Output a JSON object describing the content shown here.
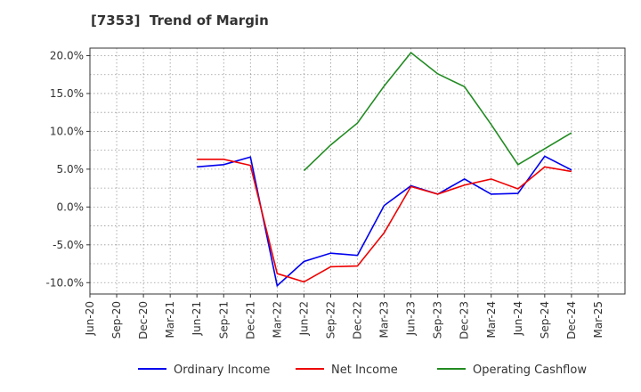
{
  "chart_data": {
    "type": "line",
    "title": "[7353]  Trend of Margin",
    "xlabel": "",
    "ylabel": "",
    "categories": [
      "Jun-20",
      "Sep-20",
      "Dec-20",
      "Mar-21",
      "Jun-21",
      "Sep-21",
      "Dec-21",
      "Mar-22",
      "Jun-22",
      "Sep-22",
      "Dec-22",
      "Mar-23",
      "Jun-23",
      "Sep-23",
      "Dec-23",
      "Mar-24",
      "Jun-24",
      "Sep-24",
      "Dec-24",
      "Mar-25"
    ],
    "ylim": [
      -11.5,
      21.0
    ],
    "yticks": [
      -10.0,
      -5.0,
      0.0,
      5.0,
      10.0,
      15.0,
      20.0
    ],
    "ytick_labels": [
      "-10.0%",
      "-5.0%",
      "0.0%",
      "5.0%",
      "10.0%",
      "15.0%",
      "20.0%"
    ],
    "grid": true,
    "legend_position": "bottom",
    "series": [
      {
        "name": "Ordinary Income",
        "color": "#0000ee",
        "values": [
          null,
          null,
          null,
          null,
          5.3,
          5.6,
          6.6,
          -10.4,
          -7.2,
          -6.1,
          -6.4,
          0.2,
          2.8,
          1.7,
          3.7,
          1.7,
          1.8,
          6.7,
          4.9,
          null
        ]
      },
      {
        "name": "Net Income",
        "color": "#ee0000",
        "values": [
          null,
          null,
          null,
          null,
          6.3,
          6.3,
          5.5,
          -8.8,
          -9.9,
          -7.9,
          -7.8,
          -3.4,
          2.7,
          1.7,
          2.9,
          3.7,
          2.4,
          5.3,
          4.7,
          null
        ]
      },
      {
        "name": "Operating Cashflow",
        "color": "#228b22",
        "values": [
          null,
          null,
          null,
          null,
          null,
          null,
          null,
          null,
          4.8,
          8.2,
          11.1,
          16.0,
          20.4,
          17.6,
          15.9,
          10.9,
          5.6,
          7.7,
          9.8,
          null
        ]
      }
    ]
  }
}
